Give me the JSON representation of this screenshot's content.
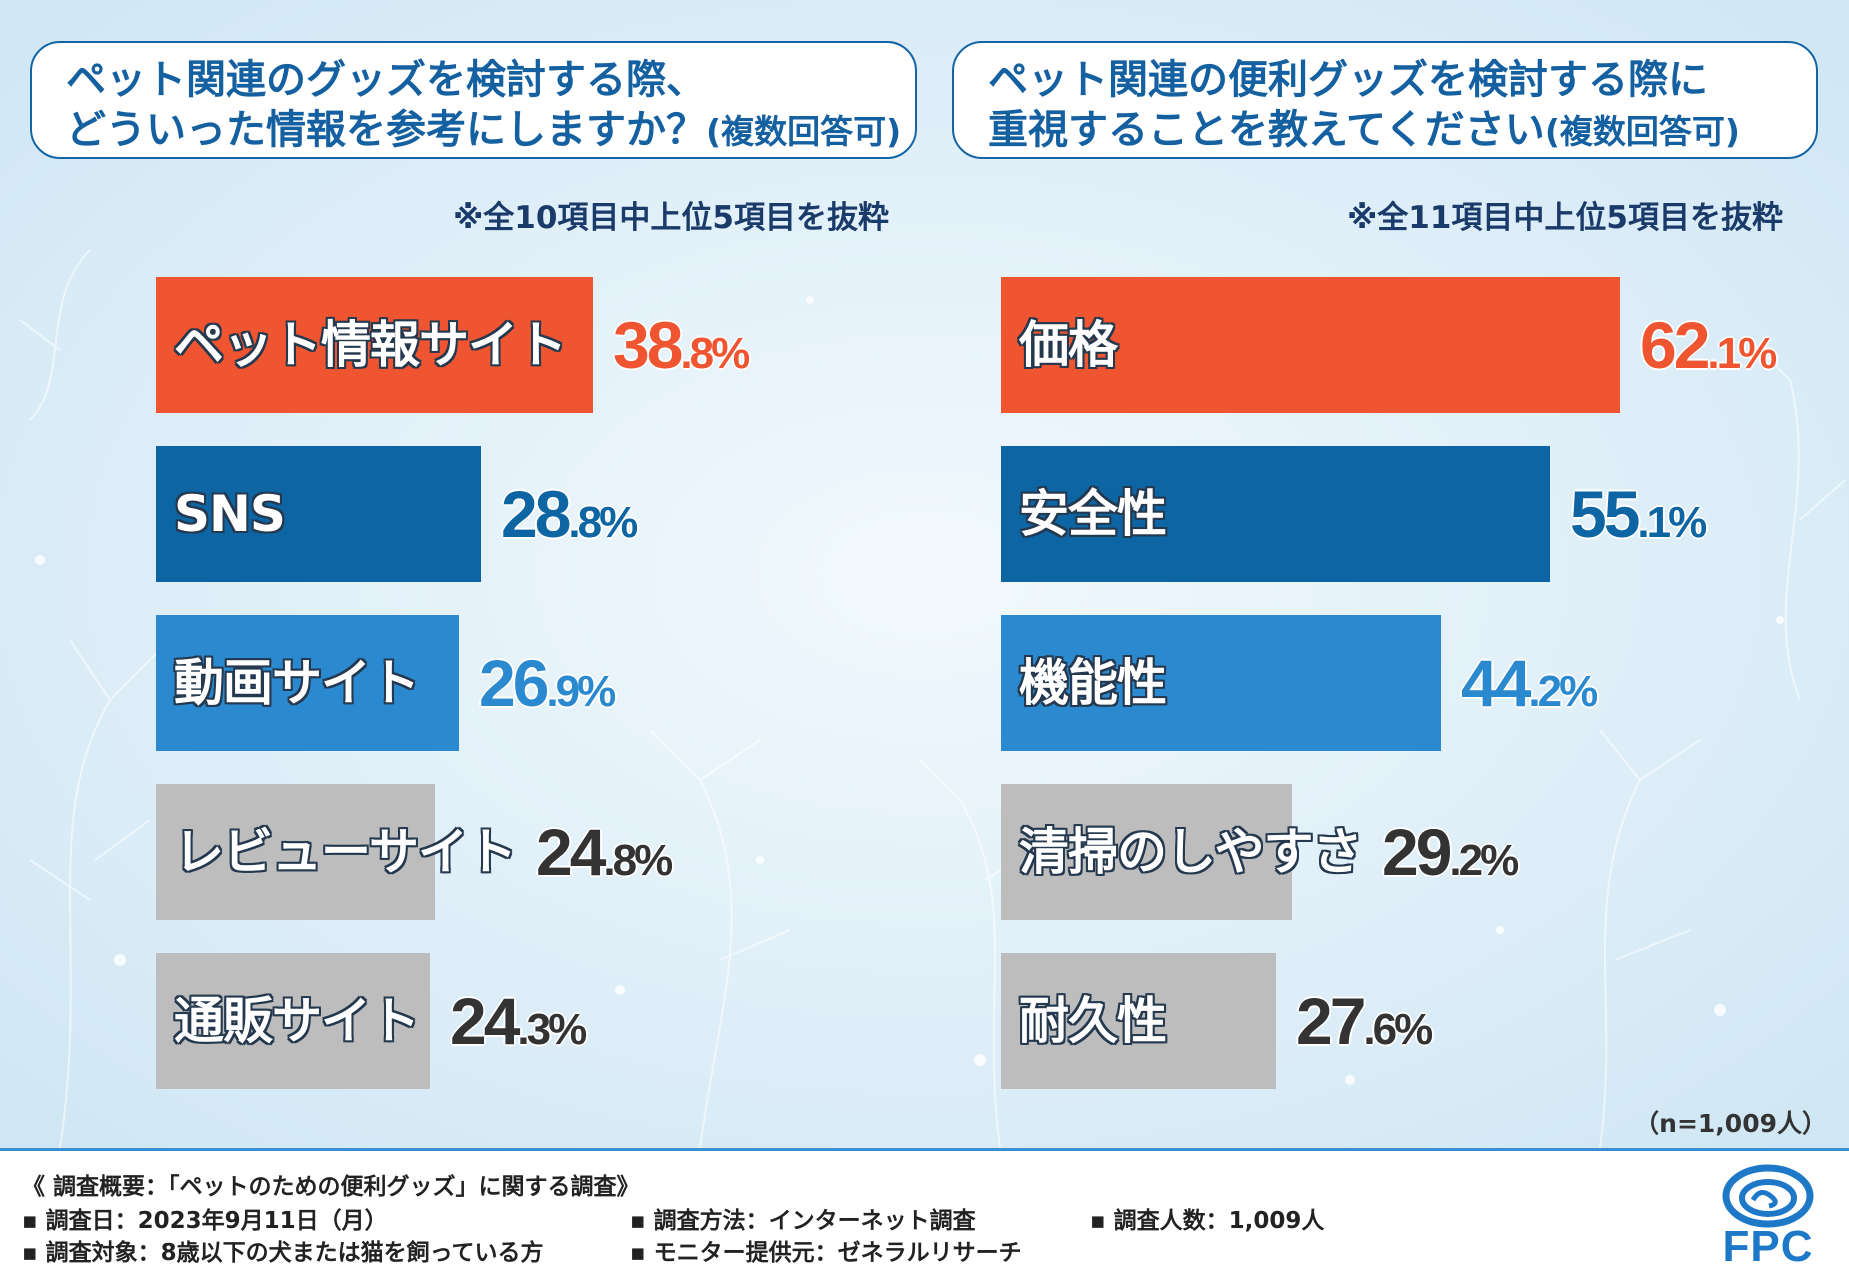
{
  "left_panel": {
    "question_line1": "ペット関連のグッズを検討する際、",
    "question_line2": "どういった情報を参考にしますか？",
    "question_suffix": "(複数回答可)",
    "note": "※全10項目中上位5項目を抜粋"
  },
  "right_panel": {
    "question_line1": "ペット関連の便利グッズを検討する際に",
    "question_line2": "重視することを教えてください",
    "question_suffix": "(複数回答可)",
    "note": "※全11項目中上位5項目を抜粋"
  },
  "sample_note": "（n=1,009人）",
  "colors": {
    "orange": "#ee5530",
    "navy": "#0d65a3",
    "blue": "#2b89d0",
    "gray": "#bdbdbd",
    "dark_text": "#333333"
  },
  "chart_data": [
    {
      "type": "bar",
      "orientation": "horizontal",
      "title": "ペット関連のグッズを検討する際、どういった情報を参考にしますか？(複数回答可)",
      "categories": [
        "ペット情報サイト",
        "SNS",
        "動画サイト",
        "レビューサイト",
        "通販サイト"
      ],
      "values": [
        38.8,
        28.8,
        26.9,
        24.8,
        24.3
      ],
      "unit": "%",
      "bar_colors": [
        "orange",
        "navy",
        "blue",
        "gray",
        "gray"
      ],
      "value_colors": [
        "orange",
        "navy",
        "blue",
        "dark_text",
        "dark_text"
      ]
    },
    {
      "type": "bar",
      "orientation": "horizontal",
      "title": "ペット関連の便利グッズを検討する際に重視することを教えてください(複数回答可)",
      "categories": [
        "価格",
        "安全性",
        "機能性",
        "清掃のしやすさ",
        "耐久性"
      ],
      "values": [
        62.1,
        55.1,
        44.2,
        29.2,
        27.6
      ],
      "unit": "%",
      "bar_colors": [
        "orange",
        "navy",
        "blue",
        "gray",
        "gray"
      ],
      "value_colors": [
        "orange",
        "navy",
        "blue",
        "dark_text",
        "dark_text"
      ]
    }
  ],
  "footer": {
    "heading": "《 調査概要：「ペットのための便利グッズ」に関する調査》",
    "date": "▪ 調査日：2023年9月11日（月）",
    "target": "▪ 調査対象：8歳以下の犬または猫を飼っている方",
    "method": "▪ 調査方法：インターネット調査",
    "provider": "▪ モニター提供元：ゼネラルリサーチ",
    "count": "▪ 調査人数：1,009人",
    "logo_text": "FPC"
  }
}
